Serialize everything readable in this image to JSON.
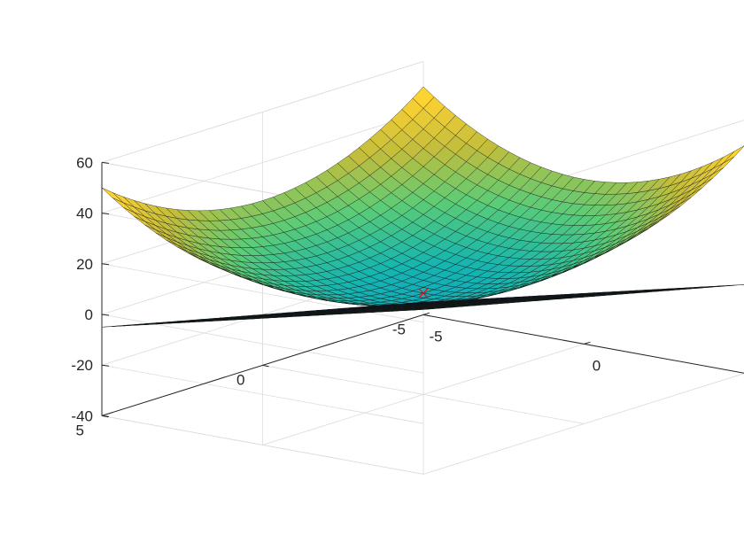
{
  "chart_data": {
    "type": "surface3d",
    "title": "",
    "xlabel": "",
    "ylabel": "",
    "zlabel": "",
    "xlim": [
      -5,
      5
    ],
    "ylim": [
      -5,
      5
    ],
    "zlim": [
      -40,
      60
    ],
    "grid": true,
    "legend": "none",
    "colormap": "parula",
    "colormap_stops": [
      "#3e26a8",
      "#2d61f0",
      "#1c94d4",
      "#14b5b1",
      "#5ccc76",
      "#c2bd3c",
      "#fbd133",
      "#f9fb15"
    ],
    "x_ticks": [
      -5,
      0,
      5
    ],
    "y_ticks": [
      -5,
      0,
      5
    ],
    "z_ticks": [
      -40,
      -20,
      0,
      20,
      40,
      60
    ],
    "x_tick_labels": [
      "-5",
      "0",
      "5"
    ],
    "y_tick_labels": [
      "-5",
      "0",
      "5"
    ],
    "z_tick_labels": [
      "-40",
      "-20",
      "0",
      "20",
      "40",
      "60"
    ],
    "grid_points": 31,
    "surfaces": [
      {
        "name": "",
        "equation": "z = x^2 + y^2",
        "z_at_corners": 50,
        "z_at_origin": 0
      },
      {
        "name": "",
        "equation": "z = 3x + 3y - 5",
        "z_at_min_corner": -35,
        "z_at_max_corner": 25
      }
    ],
    "marker": {
      "symbol": "x",
      "color": "#ff0000",
      "x": 0,
      "y": 0,
      "z": 0
    }
  }
}
